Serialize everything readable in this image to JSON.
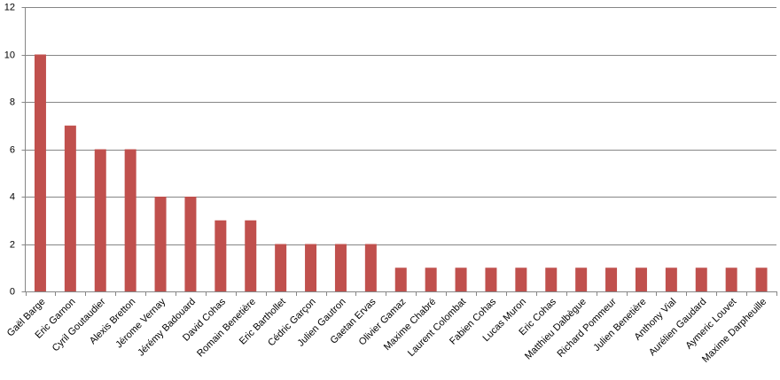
{
  "chart_data": {
    "type": "bar",
    "categories": [
      "Gaël Barge",
      "Eric Garnon",
      "Cyril Goutaudier",
      "Alexis Bretton",
      "Jérome Vernay",
      "Jérémy Badouard",
      "David Cohas",
      "Romain Benetière",
      "Eric Barthollet",
      "Cédric Garçon",
      "Julien Gautron",
      "Gaetan Ervas",
      "Olivier Gamaz",
      "Maxime Chabré",
      "Laurent Colombat",
      "Fabien Cohas",
      "Lucas Muron",
      "Eric Cohas",
      "Matthieu Dalbègue",
      "Richard Pommeur",
      "Julien Benetière",
      "Anthony Vial",
      "Aurélien Gaudard",
      "Aymeric Louvet",
      "Maxime Darpheuille"
    ],
    "values": [
      10,
      7,
      6,
      6,
      4,
      4,
      3,
      3,
      2,
      2,
      2,
      2,
      1,
      1,
      1,
      1,
      1,
      1,
      1,
      1,
      1,
      1,
      1,
      1,
      1
    ],
    "color": "#c0504d",
    "ylim": [
      0,
      12
    ],
    "yticks": [
      0,
      2,
      4,
      6,
      8,
      10,
      12
    ],
    "grid": true
  }
}
